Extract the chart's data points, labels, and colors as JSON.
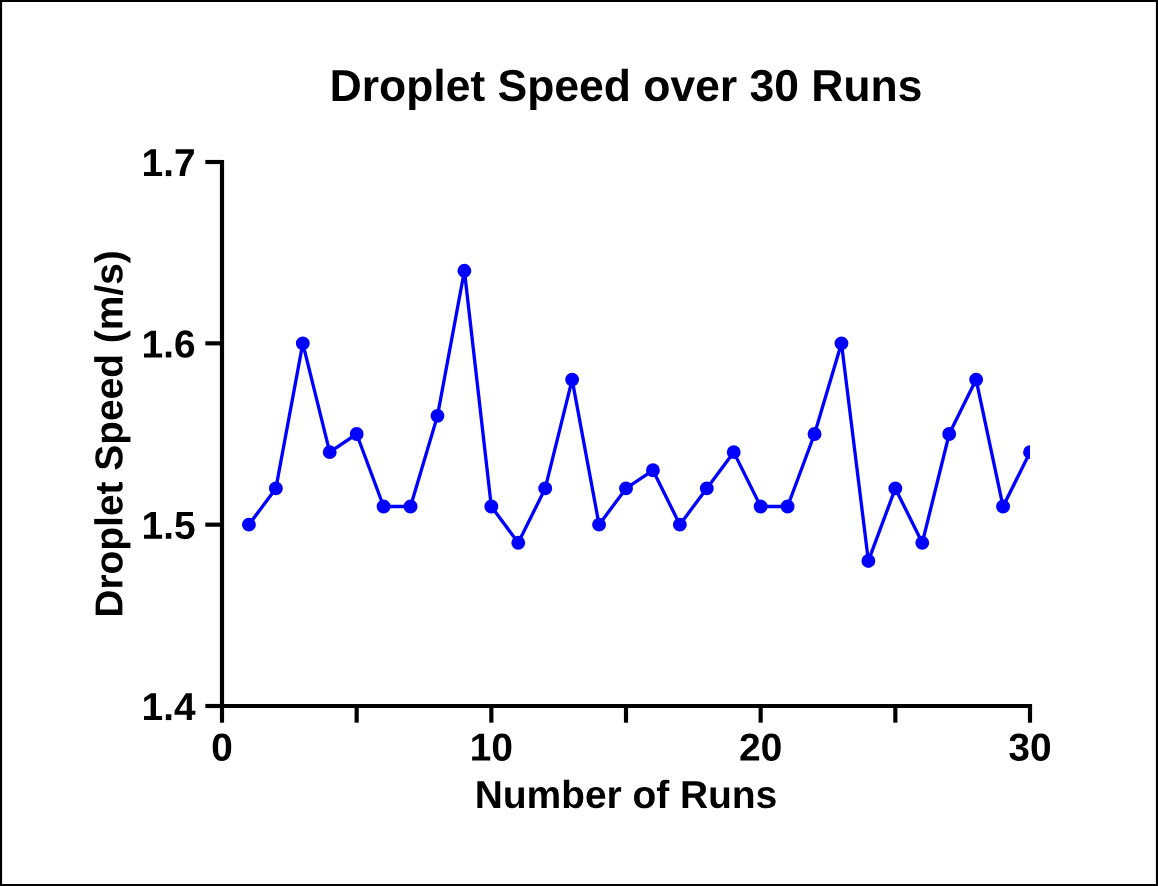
{
  "chart_data": {
    "type": "line",
    "title": "Droplet Speed over 30 Runs",
    "xlabel": "Number of Runs",
    "ylabel": "Droplet Speed (m/s)",
    "x": [
      1,
      2,
      3,
      4,
      5,
      6,
      7,
      8,
      9,
      10,
      11,
      12,
      13,
      14,
      15,
      16,
      17,
      18,
      19,
      20,
      21,
      22,
      23,
      24,
      25,
      26,
      27,
      28,
      29,
      30
    ],
    "series": [
      {
        "color": "#0000ff",
        "values": [
          1.5,
          1.52,
          1.6,
          1.54,
          1.55,
          1.51,
          1.51,
          1.56,
          1.64,
          1.51,
          1.49,
          1.52,
          1.58,
          1.5,
          1.52,
          1.53,
          1.5,
          1.52,
          1.54,
          1.51,
          1.51,
          1.55,
          1.6,
          1.48,
          1.52,
          1.49,
          1.55,
          1.58,
          1.51,
          1.54
        ]
      }
    ],
    "xlim": [
      0,
      30
    ],
    "ylim": [
      1.4,
      1.7
    ],
    "xticks": [
      0,
      {
        "value": 5,
        "label": null
      },
      10,
      {
        "value": 15,
        "label": null
      },
      20,
      {
        "value": 25,
        "label": null
      },
      30
    ],
    "yticks": [
      1.4,
      1.5,
      1.6,
      1.7
    ],
    "marker": "circle",
    "line_style": "solid",
    "grid": false,
    "legend": false
  }
}
